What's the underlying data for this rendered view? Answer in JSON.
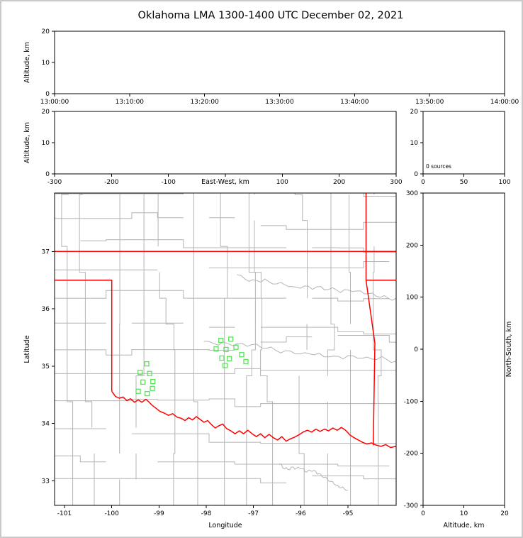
{
  "colors": {
    "state_border": "#ff0000",
    "county_line": "#b4b4b4",
    "river": "#b4b4b4",
    "station": "#5de05d",
    "axis": "#000000",
    "text": "#000000",
    "figure_border": "#c9c9c9",
    "background": "#ffffff"
  },
  "chart_data": {
    "type": "scatter",
    "title": "Oklahoma LMA 1300-1400 UTC December 02, 2021",
    "sources": {
      "count": 0,
      "points": []
    },
    "panels": [
      {
        "id": "time-altitude",
        "ylabel": "Altitude, km",
        "xlim": [
          0,
          6
        ],
        "ylim": [
          0,
          20
        ],
        "xtick_values": [
          0,
          1,
          2,
          3,
          4,
          5,
          6
        ],
        "xticks": [
          "13:00:00",
          "13:10:00",
          "13:20:00",
          "13:30:00",
          "13:40:00",
          "13:50:00",
          "14:00:00"
        ],
        "ytick_values": [
          0,
          10,
          20
        ],
        "yticks": [
          "0",
          "10",
          "20"
        ]
      },
      {
        "id": "ew-altitude",
        "xlabel": "East-West, km",
        "xlabel_inline": true,
        "ylabel": "Altitude, km",
        "xlim": [
          -300,
          300
        ],
        "ylim": [
          0,
          20
        ],
        "xtick_values": [
          -300,
          -200,
          -100,
          0,
          100,
          200,
          300
        ],
        "xticks": [
          "-300",
          "-200",
          "-100",
          "",
          "100",
          "200",
          "300"
        ],
        "ytick_values": [
          0,
          10,
          20
        ],
        "yticks": [
          "0",
          "10",
          "20"
        ]
      },
      {
        "id": "source-histogram",
        "xlim": [
          0,
          100
        ],
        "ylim": [
          0,
          20
        ],
        "xtick_values": [
          0,
          50,
          100
        ],
        "xticks": [
          "0",
          "50",
          "100"
        ],
        "ytick_values": [
          0,
          10,
          20
        ],
        "yticks": [
          "0",
          "10",
          "20"
        ],
        "annotation": "0 sources"
      },
      {
        "id": "plan-view-map",
        "xlabel": "Longitude",
        "ylabel": "Latitude",
        "xlim": [
          -101.21,
          -93.98
        ],
        "ylim": [
          32.57,
          38.02
        ],
        "xtick_values": [
          -101,
          -100,
          -99,
          -98,
          -97,
          -96,
          -95
        ],
        "xticks": [
          "-101",
          "-100",
          "-99",
          "-98",
          "-97",
          "-96",
          "-95"
        ],
        "ytick_values": [
          33,
          34,
          35,
          36,
          37
        ],
        "yticks": [
          "33",
          "34",
          "35",
          "36",
          "37"
        ]
      },
      {
        "id": "ns-altitude",
        "xlabel": "Altitude, km",
        "ylabel": "North-South, km",
        "ylabel_side": "right",
        "xlim": [
          0,
          20
        ],
        "ylim": [
          -300,
          300
        ],
        "xtick_values": [
          0,
          10,
          20
        ],
        "xticks": [
          "0",
          "10",
          "20"
        ],
        "ytick_values": [
          -300,
          -200,
          -100,
          0,
          100,
          200,
          300
        ],
        "yticks": [
          "-300",
          "-200",
          "-100",
          "0",
          "100",
          "200",
          "300"
        ]
      }
    ],
    "map": {
      "lon_range": [
        -101.21,
        -93.98
      ],
      "lat_range": [
        32.57,
        38.02
      ],
      "stations": [
        [
          -99.26,
          35.04
        ],
        [
          -99.4,
          34.89
        ],
        [
          -99.2,
          34.87
        ],
        [
          -99.34,
          34.72
        ],
        [
          -99.13,
          34.73
        ],
        [
          -99.44,
          34.56
        ],
        [
          -99.25,
          34.52
        ],
        [
          -99.14,
          34.61
        ],
        [
          -97.69,
          35.45
        ],
        [
          -97.48,
          35.47
        ],
        [
          -97.79,
          35.3
        ],
        [
          -97.58,
          35.29
        ],
        [
          -97.37,
          35.33
        ],
        [
          -97.67,
          35.14
        ],
        [
          -97.51,
          35.13
        ],
        [
          -97.25,
          35.2
        ],
        [
          -97.16,
          35.08
        ],
        [
          -97.6,
          35.01
        ]
      ],
      "state_borders": [
        [
          [
            -101.21,
            37.0
          ],
          [
            -93.98,
            37.0
          ]
        ],
        [
          [
            -101.21,
            36.5
          ],
          [
            -100.0,
            36.5
          ],
          [
            -100.0,
            34.56
          ]
        ],
        [
          [
            -100.0,
            34.56
          ],
          [
            -99.92,
            34.47
          ],
          [
            -99.84,
            34.44
          ],
          [
            -99.76,
            34.46
          ],
          [
            -99.68,
            34.4
          ],
          [
            -99.6,
            34.43
          ],
          [
            -99.52,
            34.37
          ],
          [
            -99.44,
            34.41
          ],
          [
            -99.36,
            34.37
          ],
          [
            -99.28,
            34.42
          ],
          [
            -99.22,
            34.38
          ],
          [
            -99.15,
            34.32
          ],
          [
            -99.07,
            34.27
          ],
          [
            -98.98,
            34.21
          ],
          [
            -98.89,
            34.18
          ],
          [
            -98.8,
            34.14
          ],
          [
            -98.71,
            34.17
          ],
          [
            -98.62,
            34.11
          ],
          [
            -98.53,
            34.09
          ],
          [
            -98.45,
            34.05
          ],
          [
            -98.37,
            34.1
          ],
          [
            -98.29,
            34.06
          ],
          [
            -98.21,
            34.12
          ],
          [
            -98.13,
            34.07
          ],
          [
            -98.05,
            34.02
          ],
          [
            -97.97,
            34.05
          ],
          [
            -97.89,
            33.98
          ],
          [
            -97.81,
            33.92
          ],
          [
            -97.73,
            33.96
          ],
          [
            -97.65,
            33.99
          ],
          [
            -97.57,
            33.91
          ],
          [
            -97.48,
            33.87
          ],
          [
            -97.39,
            33.82
          ],
          [
            -97.3,
            33.87
          ],
          [
            -97.21,
            33.82
          ],
          [
            -97.12,
            33.88
          ],
          [
            -97.03,
            33.82
          ],
          [
            -96.94,
            33.77
          ],
          [
            -96.85,
            33.82
          ],
          [
            -96.76,
            33.75
          ],
          [
            -96.67,
            33.81
          ],
          [
            -96.58,
            33.75
          ],
          [
            -96.49,
            33.71
          ],
          [
            -96.4,
            33.77
          ],
          [
            -96.31,
            33.69
          ],
          [
            -96.22,
            33.73
          ],
          [
            -96.13,
            33.76
          ],
          [
            -96.04,
            33.8
          ],
          [
            -95.95,
            33.85
          ],
          [
            -95.86,
            33.88
          ],
          [
            -95.77,
            33.85
          ],
          [
            -95.68,
            33.9
          ],
          [
            -95.59,
            33.86
          ],
          [
            -95.5,
            33.9
          ],
          [
            -95.41,
            33.87
          ],
          [
            -95.32,
            33.92
          ],
          [
            -95.23,
            33.88
          ],
          [
            -95.14,
            33.93
          ],
          [
            -95.05,
            33.88
          ],
          [
            -94.96,
            33.8
          ],
          [
            -94.87,
            33.75
          ],
          [
            -94.78,
            33.71
          ],
          [
            -94.69,
            33.67
          ],
          [
            -94.6,
            33.64
          ],
          [
            -94.5,
            33.66
          ],
          [
            -94.4,
            33.62
          ],
          [
            -94.3,
            33.6
          ],
          [
            -94.2,
            33.63
          ],
          [
            -94.1,
            33.58
          ],
          [
            -93.98,
            33.6
          ]
        ],
        [
          [
            -94.618,
            38.02
          ],
          [
            -94.618,
            36.5
          ],
          [
            -93.98,
            36.5
          ]
        ],
        [
          [
            -94.618,
            36.5
          ],
          [
            -94.43,
            35.4
          ],
          [
            -94.465,
            33.62
          ]
        ]
      ],
      "rivers": [
        {
          "from": [
            -98.05,
            35.42
          ],
          "to": [
            -93.98,
            35.12
          ]
        },
        {
          "from": [
            -97.35,
            36.62
          ],
          "to": [
            -93.98,
            36.05
          ]
        },
        {
          "from": [
            -96.45,
            33.3
          ],
          "to": [
            -95.0,
            32.85
          ]
        }
      ]
    }
  }
}
